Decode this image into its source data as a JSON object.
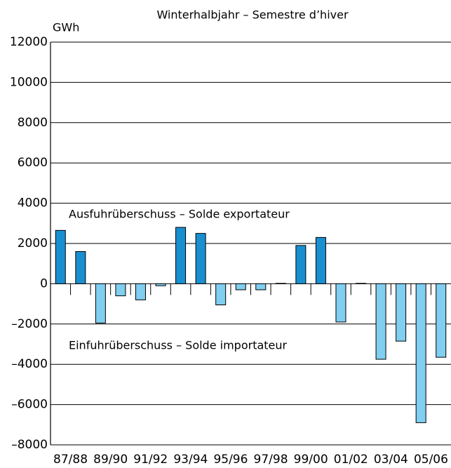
{
  "chart_data": {
    "type": "bar",
    "title": "Winterhalbjahr – Semestre d’hiver",
    "y_label": "GWh",
    "annotations": [
      "Ausfuhrüberschuss – Solde exportateur",
      "Einfuhrüberschuss – Solde importateur"
    ],
    "categories": [
      "87/88",
      null,
      "89/90",
      null,
      "91/92",
      null,
      "93/94",
      null,
      "95/96",
      null,
      "97/98",
      null,
      "99/00",
      null,
      "01/02",
      null,
      "03/04",
      null,
      "05/06",
      null
    ],
    "values": [
      2650,
      1600,
      -1950,
      -600,
      -800,
      -100,
      2800,
      2500,
      -1050,
      -300,
      -300,
      20,
      1900,
      2300,
      -1900,
      20,
      -3750,
      -2850,
      -6900,
      -3650
    ],
    "positive_color": "#1a8fd0",
    "negative_color": "#80cef0",
    "ylim": [
      -8000,
      12000
    ],
    "yticks": [
      {
        "value": -8000,
        "label": "–8000"
      },
      {
        "value": -6000,
        "label": "–6000"
      },
      {
        "value": -4000,
        "label": "–4000"
      },
      {
        "value": -2000,
        "label": "–2000"
      },
      0,
      2000,
      4000,
      6000,
      8000,
      10000,
      12000
    ],
    "grid": true
  }
}
